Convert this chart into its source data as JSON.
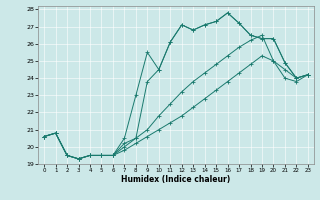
{
  "title": "",
  "xlabel": "Humidex (Indice chaleur)",
  "xlim": [
    -0.5,
    23.5
  ],
  "ylim": [
    19,
    28.2
  ],
  "xticks": [
    0,
    1,
    2,
    3,
    4,
    5,
    6,
    7,
    8,
    9,
    10,
    11,
    12,
    13,
    14,
    15,
    16,
    17,
    18,
    19,
    20,
    21,
    22,
    23
  ],
  "yticks": [
    19,
    20,
    21,
    22,
    23,
    24,
    25,
    26,
    27,
    28
  ],
  "bg_color": "#cce8e8",
  "line_color": "#1a7a6e",
  "lines": [
    {
      "x": [
        0,
        1,
        2,
        3,
        4,
        5,
        6,
        7,
        8,
        9,
        10,
        11,
        12,
        13,
        14,
        15,
        16,
        17,
        18,
        19,
        20,
        21,
        22,
        23
      ],
      "y": [
        20.6,
        20.8,
        19.5,
        19.3,
        19.5,
        19.5,
        19.5,
        20.5,
        23.0,
        25.5,
        24.5,
        26.1,
        27.1,
        26.8,
        27.1,
        27.3,
        27.8,
        27.2,
        26.5,
        26.3,
        26.3,
        24.9,
        24.0,
        24.2
      ]
    },
    {
      "x": [
        0,
        1,
        2,
        3,
        4,
        5,
        6,
        7,
        8,
        9,
        10,
        11,
        12,
        13,
        14,
        15,
        16,
        17,
        18,
        19,
        20,
        21,
        22,
        23
      ],
      "y": [
        20.6,
        20.8,
        19.5,
        19.3,
        19.5,
        19.5,
        19.5,
        20.2,
        20.5,
        23.8,
        24.5,
        26.1,
        27.1,
        26.8,
        27.1,
        27.3,
        27.8,
        27.2,
        26.5,
        26.3,
        26.3,
        24.9,
        24.0,
        24.2
      ]
    },
    {
      "x": [
        0,
        1,
        2,
        3,
        4,
        5,
        6,
        7,
        8,
        9,
        10,
        11,
        12,
        13,
        14,
        15,
        16,
        17,
        18,
        19,
        20,
        21,
        22,
        23
      ],
      "y": [
        20.6,
        20.8,
        19.5,
        19.3,
        19.5,
        19.5,
        19.5,
        20.0,
        20.5,
        21.0,
        21.8,
        22.5,
        23.2,
        23.8,
        24.3,
        24.8,
        25.3,
        25.8,
        26.2,
        26.5,
        25.0,
        24.5,
        24.0,
        24.2
      ]
    },
    {
      "x": [
        0,
        1,
        2,
        3,
        4,
        5,
        6,
        7,
        8,
        9,
        10,
        11,
        12,
        13,
        14,
        15,
        16,
        17,
        18,
        19,
        20,
        21,
        22,
        23
      ],
      "y": [
        20.6,
        20.8,
        19.5,
        19.3,
        19.5,
        19.5,
        19.5,
        19.8,
        20.2,
        20.6,
        21.0,
        21.4,
        21.8,
        22.3,
        22.8,
        23.3,
        23.8,
        24.3,
        24.8,
        25.3,
        25.0,
        24.0,
        23.8,
        24.2
      ]
    }
  ]
}
